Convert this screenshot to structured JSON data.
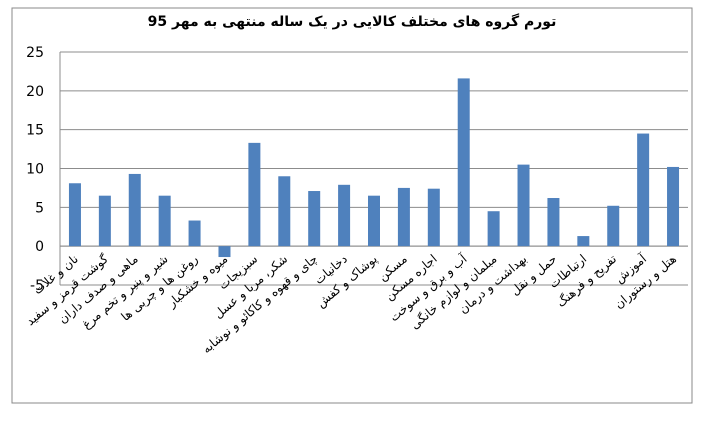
{
  "chart_data": {
    "type": "bar",
    "title": "تورم گروه های مختلف کالایی در یک ساله منتهی به مهر 95",
    "categories": [
      "نان و غلات",
      "گوشت قرمز و سفید",
      "ماهی و صدف داران",
      "شیر و پنیر و تخم مرغ",
      "روغن ها و چربی ها",
      "میوه و خشکبار",
      "سبزیجات",
      "شکر، مربا و عسل",
      "چای و قهوه و کاکائو و نوشابه",
      "دخانیات",
      "پوشاک و کفش",
      "مسکن",
      "اجاره مسکن",
      "آب و برق و سوخت",
      "مبلمان و لوازم خانگی",
      "بهداشت و درمان",
      "حمل و نقل",
      "ارتباطات",
      "تفریح و فرهنگ",
      "آموزش",
      "هتل و رستوران"
    ],
    "values": [
      8.1,
      6.5,
      9.3,
      6.5,
      3.3,
      -1.4,
      13.3,
      9.0,
      7.1,
      7.9,
      6.5,
      7.5,
      7.4,
      21.6,
      4.5,
      10.5,
      6.2,
      1.3,
      5.2,
      14.5,
      10.2
    ],
    "color": "#4f81bd",
    "ylim": [
      -5,
      25
    ],
    "yticks": [
      -5,
      0,
      5,
      10,
      15,
      20,
      25
    ],
    "grid": true
  }
}
